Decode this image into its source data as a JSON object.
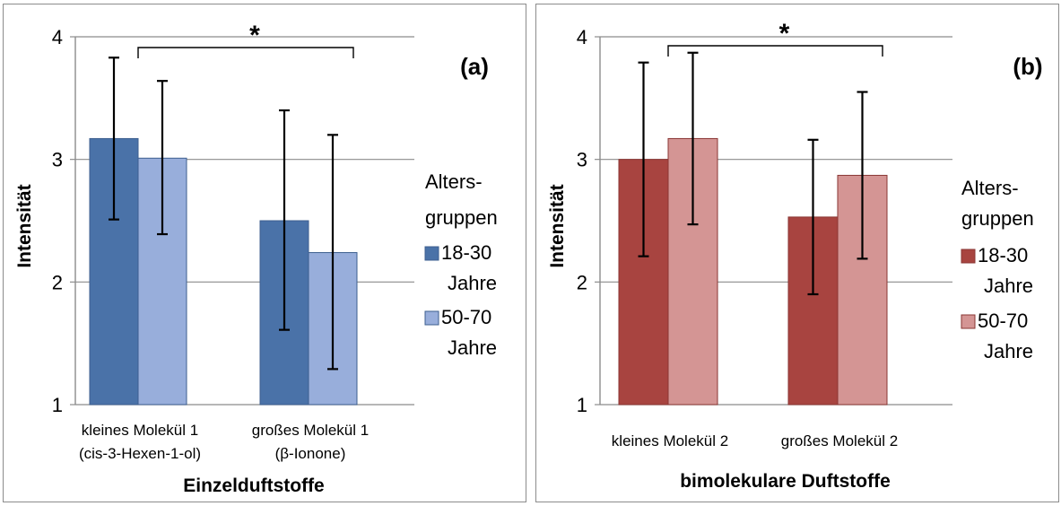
{
  "chart_data": [
    {
      "type": "bar",
      "panel_label": "(a)",
      "xlabel": "Einzelduftstoffe",
      "ylabel": "Intensität",
      "ylim": [
        1,
        4
      ],
      "yticks": [
        "1",
        "2",
        "3",
        "4"
      ],
      "categories": [
        [
          "kleines Molekül 1",
          "(cis-3-Hexen-1-ol)"
        ],
        [
          "großes Molekül 1",
          "(β-Ionone)"
        ]
      ],
      "series": [
        {
          "name": [
            "18-30",
            "Jahre"
          ],
          "color": "#4a72a8",
          "values": [
            3.17,
            2.5
          ],
          "err_low": [
            2.51,
            1.61
          ],
          "err_high": [
            3.83,
            3.4
          ]
        },
        {
          "name": [
            "50-70",
            "Jahre"
          ],
          "color": "#98aedb",
          "values": [
            3.01,
            2.24
          ],
          "err_low": [
            2.39,
            1.29
          ],
          "err_high": [
            3.64,
            3.2
          ]
        }
      ],
      "legend_title": [
        "Alters-",
        "gruppen"
      ],
      "legend_position": "right",
      "grid": true,
      "significance": "*"
    },
    {
      "type": "bar",
      "panel_label": "(b)",
      "xlabel": "bimolekulare Duftstoffe",
      "ylabel": "Intensität",
      "ylim": [
        1,
        4
      ],
      "yticks": [
        "1",
        "2",
        "3",
        "4"
      ],
      "categories": [
        [
          "kleines Molekül 2"
        ],
        [
          "großes Molekül 2"
        ]
      ],
      "series": [
        {
          "name": [
            "18-30",
            "Jahre"
          ],
          "color": "#a84440",
          "values": [
            3.0,
            2.53
          ],
          "err_low": [
            2.21,
            1.9
          ],
          "err_high": [
            3.79,
            3.16
          ]
        },
        {
          "name": [
            "50-70",
            "Jahre"
          ],
          "color": "#d49594",
          "values": [
            3.17,
            2.87
          ],
          "err_low": [
            2.47,
            2.19
          ],
          "err_high": [
            3.87,
            3.55
          ]
        }
      ],
      "legend_title": [
        "Alters-",
        "gruppen"
      ],
      "legend_position": "right",
      "grid": true,
      "significance": "*"
    }
  ]
}
